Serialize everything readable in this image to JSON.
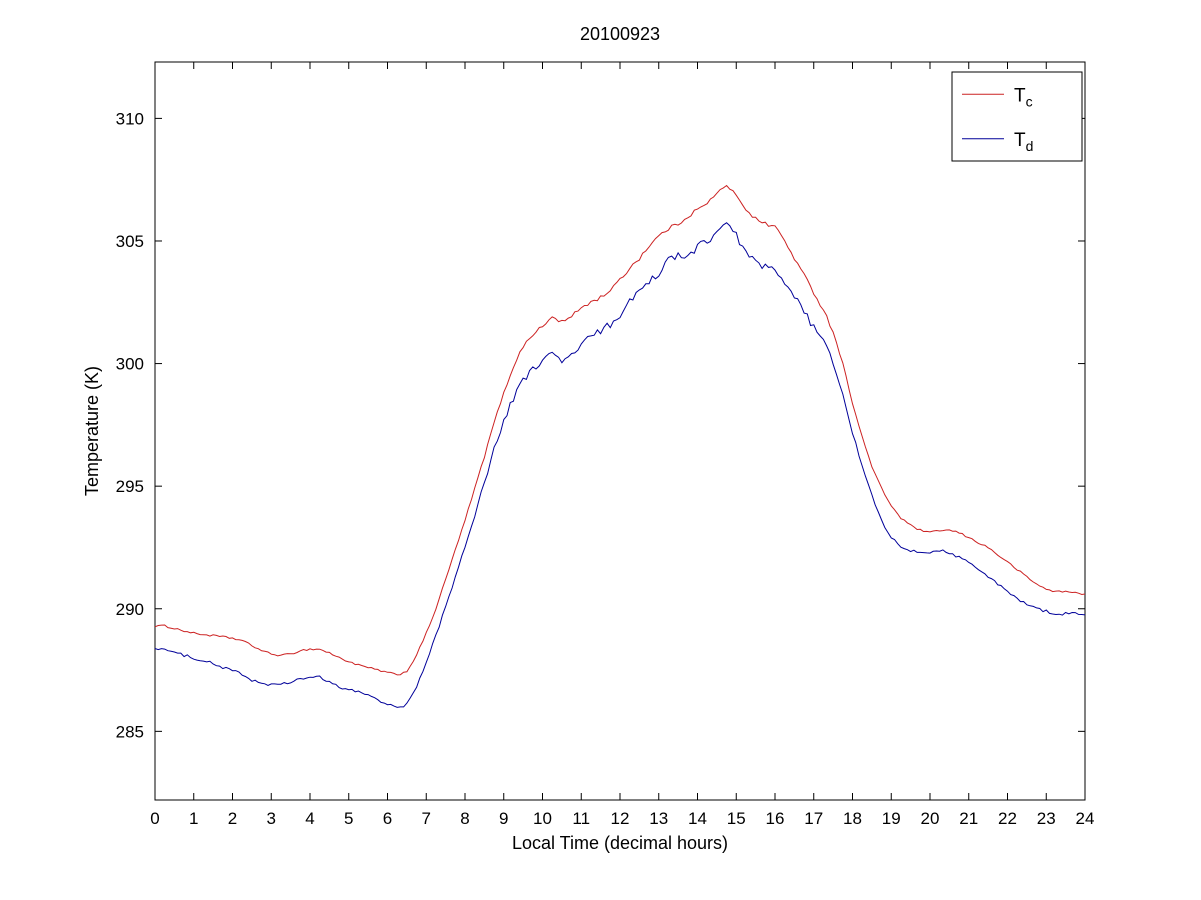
{
  "chart_data": {
    "type": "line",
    "title": "20100923",
    "xlabel": "Local Time (decimal hours)",
    "ylabel": "Temperature (K)",
    "xlim": [
      0,
      24
    ],
    "ylim": [
      282.2,
      312.3
    ],
    "xticks": [
      0,
      1,
      2,
      3,
      4,
      5,
      6,
      7,
      8,
      9,
      10,
      11,
      12,
      13,
      14,
      15,
      16,
      17,
      18,
      19,
      20,
      21,
      22,
      23,
      24
    ],
    "yticks": [
      285,
      290,
      295,
      300,
      305,
      310
    ],
    "grid": false,
    "legend_position": "top-right",
    "x": [
      0,
      0.25,
      0.5,
      0.75,
      1,
      1.25,
      1.5,
      1.75,
      2,
      2.25,
      2.5,
      2.75,
      3,
      3.25,
      3.5,
      3.75,
      4,
      4.25,
      4.5,
      4.75,
      5,
      5.25,
      5.5,
      5.75,
      6,
      6.25,
      6.5,
      6.75,
      7,
      7.25,
      7.5,
      7.75,
      8,
      8.25,
      8.5,
      8.75,
      9,
      9.25,
      9.5,
      9.75,
      10,
      10.25,
      10.5,
      10.75,
      11,
      11.25,
      11.5,
      11.75,
      12,
      12.25,
      12.5,
      12.75,
      13,
      13.25,
      13.5,
      13.75,
      14,
      14.25,
      14.5,
      14.75,
      15,
      15.25,
      15.5,
      15.75,
      16,
      16.25,
      16.5,
      16.75,
      17,
      17.25,
      17.5,
      17.75,
      18,
      18.25,
      18.5,
      18.75,
      19,
      19.25,
      19.5,
      19.75,
      20,
      20.25,
      20.5,
      20.75,
      21,
      21.25,
      21.5,
      21.75,
      22,
      22.25,
      22.5,
      22.75,
      23,
      23.25,
      23.5,
      23.75,
      24
    ],
    "series": [
      {
        "name": "Tc",
        "label_main": "T",
        "label_sub": "c",
        "color": "#cc2222",
        "noise": {
          "base": 0.04,
          "day": 0.04,
          "day_start": 9,
          "day_end": 17.5
        },
        "values": [
          289.3,
          289.3,
          289.2,
          289.1,
          289.0,
          288.95,
          288.9,
          288.85,
          288.8,
          288.7,
          288.5,
          288.3,
          288.15,
          288.1,
          288.15,
          288.3,
          288.35,
          288.35,
          288.2,
          288.0,
          287.85,
          287.7,
          287.6,
          287.5,
          287.4,
          287.3,
          287.45,
          288.1,
          289.0,
          290.0,
          291.2,
          292.4,
          293.6,
          294.9,
          296.2,
          297.6,
          298.8,
          299.9,
          300.7,
          301.2,
          301.5,
          301.9,
          301.7,
          301.9,
          302.3,
          302.5,
          302.7,
          303.0,
          303.4,
          303.9,
          304.3,
          304.8,
          305.2,
          305.5,
          305.7,
          306.0,
          306.3,
          306.5,
          307.0,
          307.2,
          306.9,
          306.3,
          305.9,
          305.7,
          305.6,
          305.0,
          304.3,
          303.6,
          302.9,
          302.2,
          301.3,
          300.0,
          298.4,
          297.0,
          295.8,
          294.9,
          294.2,
          293.7,
          293.4,
          293.2,
          293.1,
          293.2,
          293.2,
          293.1,
          292.9,
          292.7,
          292.5,
          292.2,
          291.9,
          291.6,
          291.3,
          291.0,
          290.8,
          290.7,
          290.7,
          290.65,
          290.6
        ]
      },
      {
        "name": "Td",
        "label_main": "T",
        "label_sub": "d",
        "color": "#000099",
        "noise": {
          "base": 0.06,
          "day": 0.1,
          "day_start": 8.5,
          "day_end": 17.5
        },
        "values": [
          288.4,
          288.35,
          288.2,
          288.1,
          288.0,
          287.9,
          287.75,
          287.6,
          287.5,
          287.3,
          287.1,
          286.95,
          286.9,
          286.9,
          287.0,
          287.15,
          287.2,
          287.2,
          287.0,
          286.8,
          286.7,
          286.6,
          286.5,
          286.3,
          286.1,
          285.95,
          286.1,
          286.8,
          287.8,
          288.9,
          290.1,
          291.3,
          292.5,
          293.8,
          295.2,
          296.5,
          297.6,
          298.6,
          299.3,
          299.8,
          300.1,
          300.4,
          300.1,
          300.3,
          300.8,
          301.1,
          301.3,
          301.6,
          302.0,
          302.5,
          302.9,
          303.3,
          303.7,
          304.2,
          304.4,
          304.3,
          304.8,
          305.0,
          305.4,
          305.6,
          305.2,
          304.6,
          304.1,
          303.9,
          303.8,
          303.2,
          302.7,
          302.1,
          301.5,
          300.9,
          300.0,
          298.7,
          297.2,
          295.8,
          294.6,
          293.6,
          292.9,
          292.5,
          292.35,
          292.3,
          292.3,
          292.4,
          292.3,
          292.1,
          291.9,
          291.6,
          291.3,
          291.0,
          290.7,
          290.4,
          290.2,
          290.0,
          289.9,
          289.8,
          289.8,
          289.8,
          289.75
        ]
      }
    ]
  }
}
